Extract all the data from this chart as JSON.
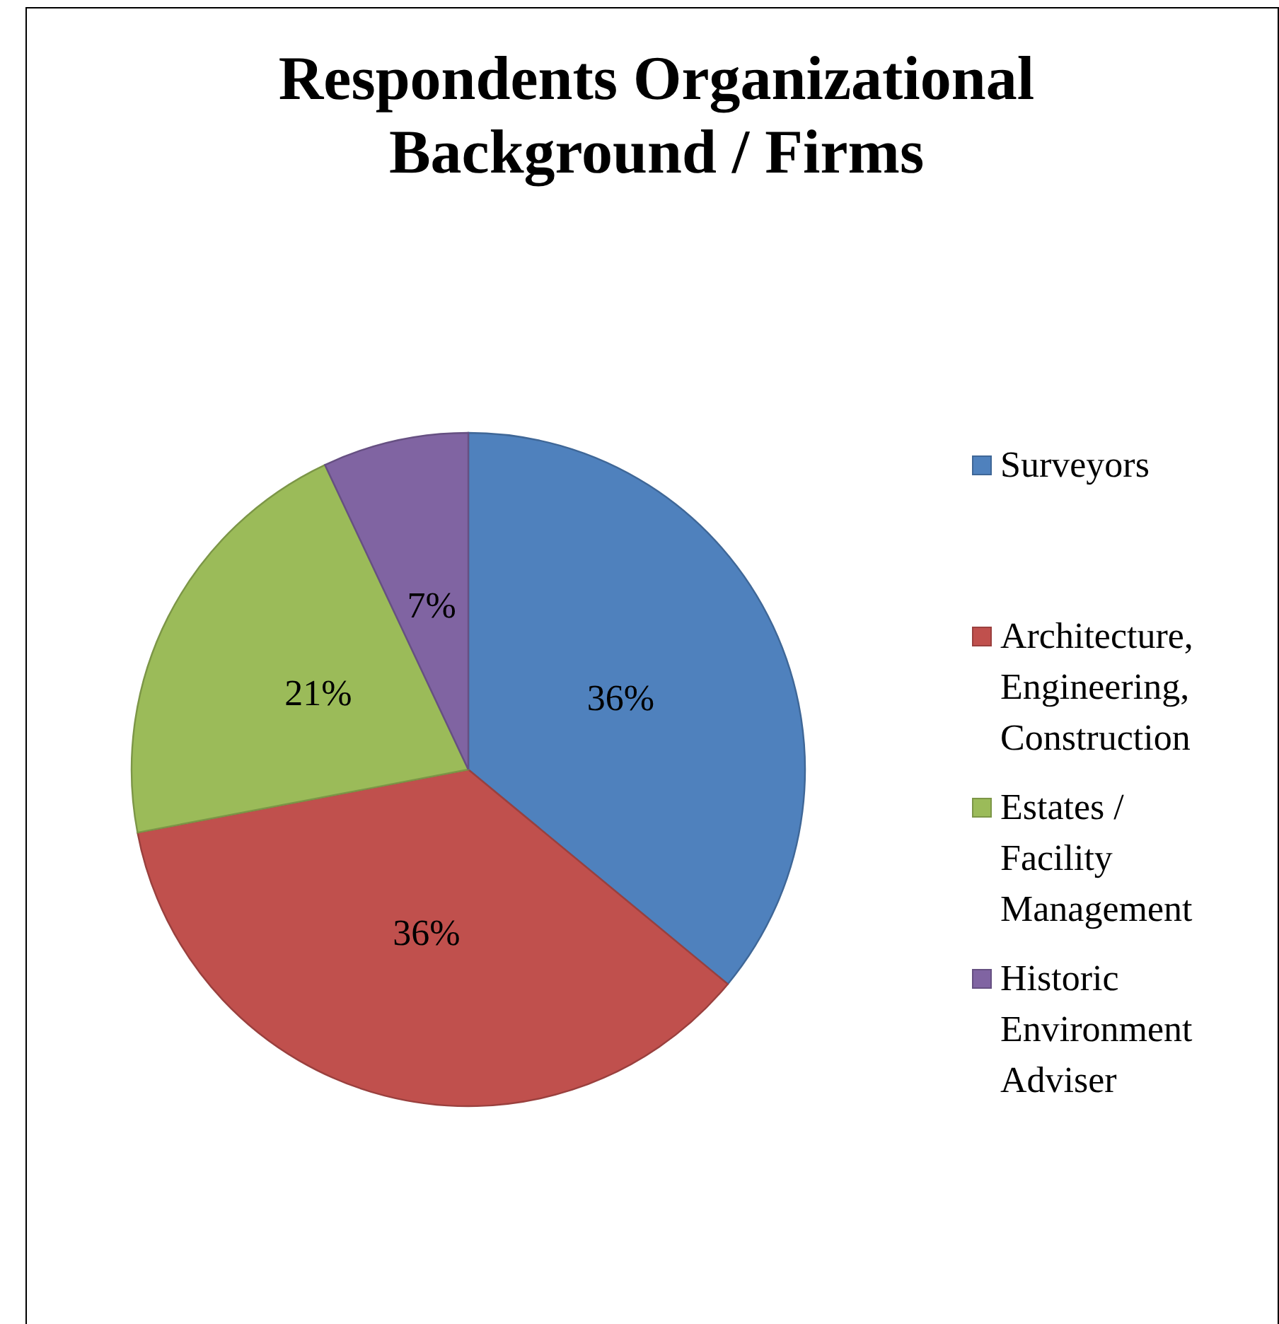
{
  "chart_data": {
    "type": "pie",
    "title": "Respondents Organizational Background / Firms",
    "categories": [
      "Surveyors",
      "Architecture, Engineering, Construction",
      "Estates / Facility Management",
      "Historic Environment Adviser"
    ],
    "values": [
      36,
      36,
      21,
      7
    ],
    "colors": [
      "#4f81bd",
      "#c0504d",
      "#9bbb59",
      "#8064a2"
    ],
    "value_labels": [
      "36%",
      "36%",
      "21%",
      "7%"
    ],
    "legend": "right"
  }
}
